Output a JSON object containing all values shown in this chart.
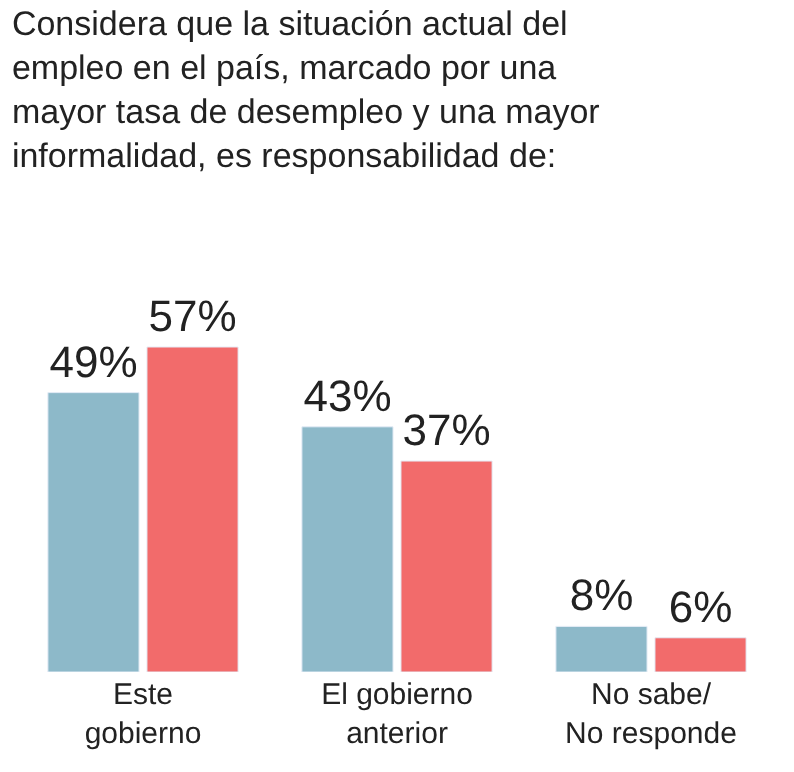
{
  "chart_data": {
    "type": "bar",
    "title": "Considera que la situación actual del\nempleo en el país, marcado por una\nmayor tasa de desempleo y una mayor\ninformalidad, es responsabilidad de:",
    "categories": [
      "Este\ngobierno",
      "El gobierno\nanterior",
      "No sabe/\nNo responde"
    ],
    "series": [
      {
        "color": "#8db9c9",
        "values": [
          49,
          43,
          8
        ],
        "value_labels": [
          "49%",
          "43%",
          "8%"
        ]
      },
      {
        "color": "#f26b6b",
        "values": [
          57,
          37,
          6
        ],
        "value_labels": [
          "57%",
          "37%",
          "6%"
        ]
      }
    ],
    "tick_labels": "x"
  }
}
